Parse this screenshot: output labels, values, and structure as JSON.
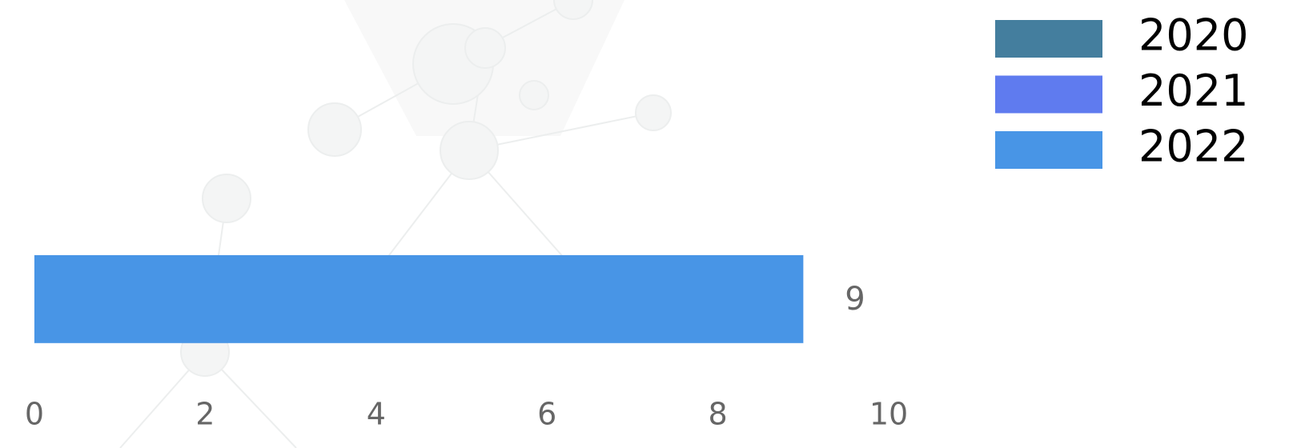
{
  "chart_data": {
    "type": "bar",
    "orientation": "horizontal",
    "categories": [
      null
    ],
    "series": [
      {
        "name": "2020",
        "color": "#447e9e",
        "values": [
          0
        ]
      },
      {
        "name": "2021",
        "color": "#5f7bef",
        "values": [
          0
        ]
      },
      {
        "name": "2022",
        "color": "#4895e6",
        "values": [
          9
        ]
      }
    ],
    "xlim": [
      0,
      10
    ],
    "xticks": [
      0,
      2,
      4,
      6,
      8,
      10
    ],
    "legend": "top-right"
  }
}
